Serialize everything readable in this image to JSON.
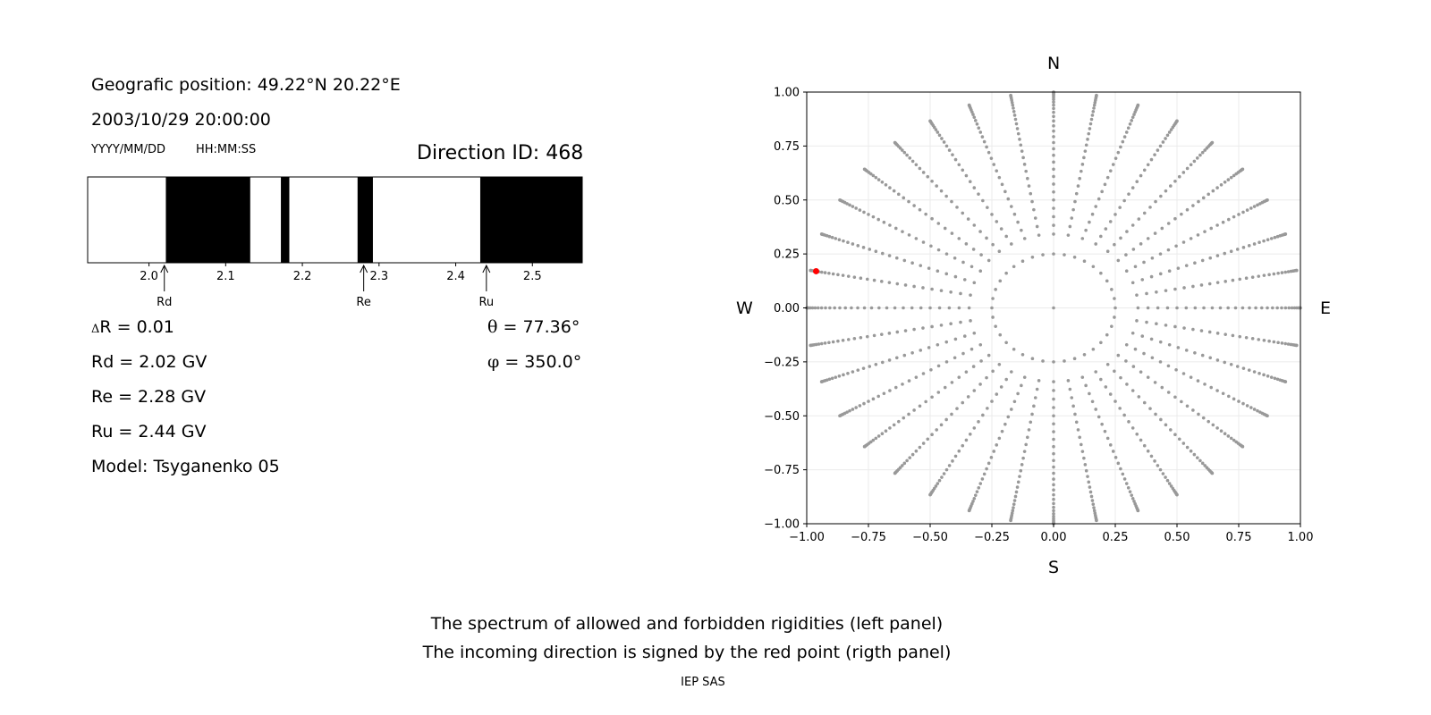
{
  "left_panel": {
    "position_line": "Geografic position: 49.22°N 20.22°E",
    "datetime": "2003/10/29 20:00:00",
    "date_format": "YYYY/MM/DD",
    "time_format": "HH:MM:SS",
    "direction_id": "Direction ID: 468",
    "delta_r_symbol": "Δ",
    "delta_r_text": "R = 0.01",
    "rd_text": "Rd = 2.02 GV",
    "re_text": "Re = 2.28 GV",
    "ru_text": "Ru = 2.44 GV",
    "model_text": "Model: Tsyganenko 05",
    "theta_symbol": "θ",
    "theta_text": " = 77.36°",
    "phi_symbol": "φ",
    "phi_text": " = 350.0°"
  },
  "right_panel": {
    "north": "N",
    "south": "S",
    "west": "W",
    "east": "E"
  },
  "footer": {
    "line1": "The spectrum of allowed and forbidden rigidities (left panel)",
    "line2": "The incoming direction is signed by the red point (rigth panel)",
    "credit": "IEP SAS"
  },
  "colors": {
    "forbidden": "#000000",
    "allowed": "#ffffff",
    "grid_points": "#999999",
    "direction_point": "#ff0000"
  },
  "chart_data": [
    {
      "type": "bar",
      "name": "rigidity-spectrum",
      "xlim": [
        1.92,
        2.565
      ],
      "xticks": [
        2.0,
        2.1,
        2.2,
        2.3,
        2.4,
        2.5
      ],
      "forbidden_bands": [
        [
          2.022,
          2.132
        ],
        [
          2.172,
          2.183
        ],
        [
          2.272,
          2.292
        ],
        [
          2.432,
          2.565
        ]
      ],
      "markers": [
        {
          "label": "Rd",
          "value": 2.02
        },
        {
          "label": "Re",
          "value": 2.28
        },
        {
          "label": "Ru",
          "value": 2.44
        }
      ]
    },
    {
      "type": "scatter",
      "name": "direction-map",
      "xlim": [
        -1.0,
        1.0
      ],
      "ylim": [
        -1.0,
        1.0
      ],
      "xticks": [
        -1.0,
        -0.75,
        -0.5,
        -0.25,
        0.0,
        0.25,
        0.5,
        0.75,
        1.0
      ],
      "yticks": [
        -1.0,
        -0.75,
        -0.5,
        -0.25,
        0.0,
        0.25,
        0.5,
        0.75,
        1.0
      ],
      "tick_labels_x": [
        "−1.00",
        "−0.75",
        "−0.50",
        "−0.25",
        "0.00",
        "0.25",
        "0.50",
        "0.75",
        "1.00"
      ],
      "tick_labels_y": [
        "−1.00",
        "−0.75",
        "−0.50",
        "−0.25",
        "0.00",
        "0.25",
        "0.50",
        "0.75",
        "1.00"
      ],
      "grid": true,
      "grid_rays_deg": [
        0,
        10,
        20,
        30,
        40,
        50,
        60,
        70,
        80,
        90,
        100,
        110,
        120,
        130,
        140,
        150,
        160,
        170,
        180,
        190,
        200,
        210,
        220,
        230,
        240,
        250,
        260,
        270,
        280,
        290,
        300,
        310,
        320,
        330,
        340,
        350
      ],
      "grid_inner_radius": 0.25,
      "highlight_point": {
        "x": -0.962,
        "y": 0.17
      }
    }
  ]
}
